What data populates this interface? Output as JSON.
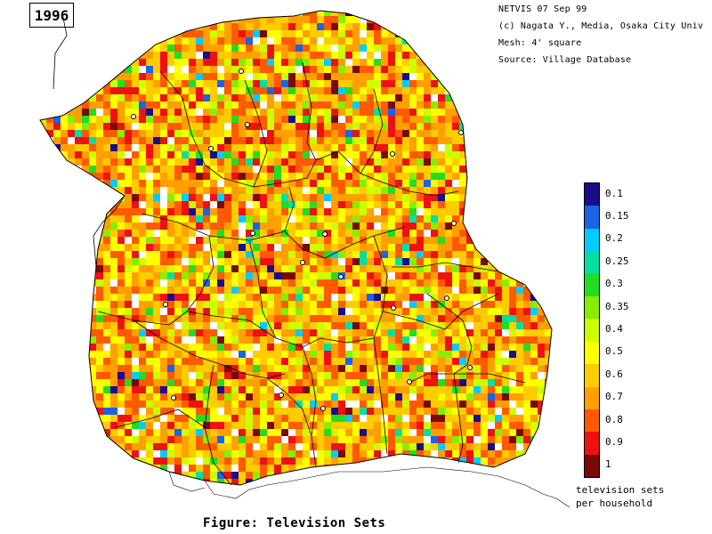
{
  "year": "1996",
  "credits": {
    "line1": "NETVIS 07 Sep 99",
    "line2": "(c) Nagata Y., Media, Osaka City Univ",
    "line3": "Mesh:  4' square",
    "line4": "Source:  Village Database"
  },
  "legend": {
    "items": [
      {
        "label": "0.1",
        "color": "#1a0d8c"
      },
      {
        "label": "0.15",
        "color": "#1a64e6"
      },
      {
        "label": "0.2",
        "color": "#00ccff"
      },
      {
        "label": "0.25",
        "color": "#00e0a0"
      },
      {
        "label": "0.3",
        "color": "#22dd22"
      },
      {
        "label": "0.35",
        "color": "#88ee00"
      },
      {
        "label": "0.4",
        "color": "#ccff00"
      },
      {
        "label": "0.5",
        "color": "#ffff00"
      },
      {
        "label": "0.6",
        "color": "#ffcc00"
      },
      {
        "label": "0.7",
        "color": "#ffa000"
      },
      {
        "label": "0.8",
        "color": "#ff5a00"
      },
      {
        "label": "0.9",
        "color": "#ee1111"
      },
      {
        "label": "1",
        "color": "#7a0a0a"
      }
    ],
    "caption_line1": "television sets",
    "caption_line2": "per household"
  },
  "figure_caption": "Figure: Television Sets"
}
